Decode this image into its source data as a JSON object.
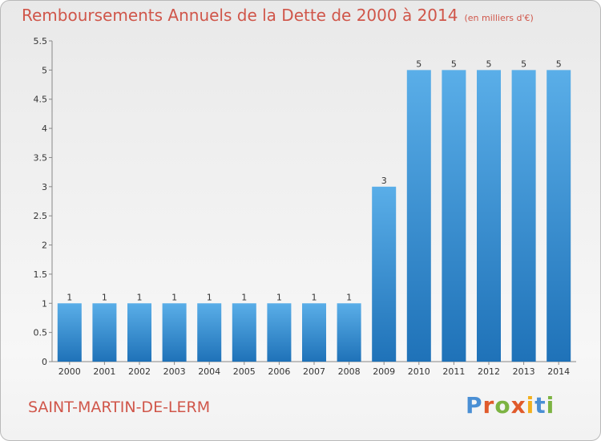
{
  "header": {
    "title": "Remboursements Annuels de la Dette de 2000 à 2014",
    "unit": "(en milliers d'€)"
  },
  "commune": "SAINT-MARTIN-DE-LERM",
  "logo": {
    "text": "Proxiti",
    "colors": [
      "#4a8fd4",
      "#e05a2b",
      "#7cb342",
      "#e05a2b",
      "#f2b01e",
      "#4a8fd4",
      "#7cb342"
    ]
  },
  "colors": {
    "bar_light": "#5aaee8",
    "bar_dark": "#1f72b8",
    "title": "#d0564a"
  },
  "chart_data": {
    "type": "bar",
    "title": "Remboursements Annuels de la Dette de 2000 à 2014",
    "subtitle": "(en milliers d'€)",
    "categories": [
      "2000",
      "2001",
      "2002",
      "2003",
      "2004",
      "2005",
      "2006",
      "2007",
      "2008",
      "2009",
      "2010",
      "2011",
      "2012",
      "2013",
      "2014"
    ],
    "values": [
      1,
      1,
      1,
      1,
      1,
      1,
      1,
      1,
      1,
      3,
      5,
      5,
      5,
      5,
      5
    ],
    "data_labels": [
      "1",
      "1",
      "1",
      "1",
      "1",
      "1",
      "1",
      "1",
      "1",
      "3",
      "5",
      "5",
      "5",
      "5",
      "5"
    ],
    "yticks": [
      "0",
      "0.5",
      "1",
      "1.5",
      "2",
      "2.5",
      "3",
      "3.5",
      "4",
      "4.5",
      "5",
      "5.5"
    ],
    "ylim": [
      0,
      5.5
    ],
    "grid": false,
    "legend": "none"
  }
}
